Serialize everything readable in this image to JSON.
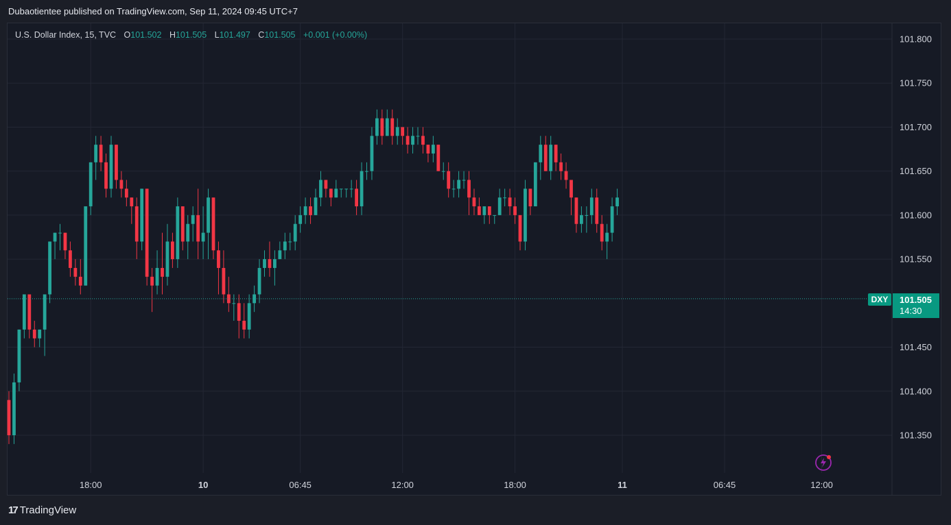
{
  "publisher_line": "Dubaotientee published on TradingView.com, Sep 11, 2024 09:45 UTC+7",
  "legend": {
    "symbol": "U.S. Dollar Index, 15, TVC",
    "o_label": "O",
    "o_value": "101.502",
    "h_label": "H",
    "h_value": "101.505",
    "l_label": "L",
    "l_value": "101.497",
    "c_label": "C",
    "c_value": "101.505",
    "change": "+0.001 (+0.00%)"
  },
  "last_price": {
    "ticker": "DXY",
    "price": "101.505",
    "countdown": "14:30"
  },
  "footer": {
    "logo_glyph": "17",
    "brand": "TradingView"
  },
  "icons": {
    "alert": "lightning-icon"
  },
  "colors": {
    "up": "#26a69a",
    "down": "#f23645",
    "background": "#161a25",
    "grid": "#232734"
  },
  "chart_data": {
    "type": "candlestick",
    "y_ticks": [
      "101.800",
      "101.750",
      "101.700",
      "101.650",
      "101.600",
      "101.550",
      "101.450",
      "101.400",
      "101.350"
    ],
    "ylim": [
      101.305,
      101.81
    ],
    "x_ticks": [
      {
        "label": "18:00",
        "bold": false,
        "index": 16
      },
      {
        "label": "10",
        "bold": true,
        "index": 38
      },
      {
        "label": "06:45",
        "bold": false,
        "index": 57
      },
      {
        "label": "12:00",
        "bold": false,
        "index": 77
      },
      {
        "label": "18:00",
        "bold": false,
        "index": 99
      },
      {
        "label": "11",
        "bold": true,
        "index": 120
      },
      {
        "label": "06:45",
        "bold": false,
        "index": 140
      },
      {
        "label": "12:00",
        "bold": false,
        "index": 159
      }
    ],
    "candles": [
      [
        101.39,
        101.4,
        101.34,
        101.35
      ],
      [
        101.35,
        101.42,
        101.34,
        101.41
      ],
      [
        101.41,
        101.47,
        101.4,
        101.47
      ],
      [
        101.47,
        101.51,
        101.46,
        101.51
      ],
      [
        101.51,
        101.51,
        101.46,
        101.47
      ],
      [
        101.47,
        101.48,
        101.45,
        101.46
      ],
      [
        101.46,
        101.47,
        101.45,
        101.47
      ],
      [
        101.47,
        101.51,
        101.44,
        101.51
      ],
      [
        101.51,
        101.57,
        101.5,
        101.57
      ],
      [
        101.57,
        101.58,
        101.55,
        101.58
      ],
      [
        101.58,
        101.59,
        101.56,
        101.58
      ],
      [
        101.58,
        101.58,
        101.55,
        101.56
      ],
      [
        101.56,
        101.57,
        101.53,
        101.54
      ],
      [
        101.54,
        101.55,
        101.52,
        101.53
      ],
      [
        101.53,
        101.55,
        101.51,
        101.52
      ],
      [
        101.52,
        101.61,
        101.52,
        101.61
      ],
      [
        101.61,
        101.66,
        101.6,
        101.66
      ],
      [
        101.66,
        101.69,
        101.64,
        101.68
      ],
      [
        101.68,
        101.69,
        101.65,
        101.66
      ],
      [
        101.66,
        101.67,
        101.62,
        101.63
      ],
      [
        101.63,
        101.69,
        101.62,
        101.68
      ],
      [
        101.68,
        101.68,
        101.63,
        101.64
      ],
      [
        101.64,
        101.65,
        101.62,
        101.63
      ],
      [
        101.63,
        101.64,
        101.61,
        101.62
      ],
      [
        101.62,
        101.62,
        101.59,
        101.61
      ],
      [
        101.61,
        101.62,
        101.55,
        101.57
      ],
      [
        101.57,
        101.63,
        101.56,
        101.63
      ],
      [
        101.63,
        101.63,
        101.52,
        101.53
      ],
      [
        101.53,
        101.54,
        101.49,
        101.52
      ],
      [
        101.52,
        101.56,
        101.51,
        101.54
      ],
      [
        101.54,
        101.58,
        101.51,
        101.53
      ],
      [
        101.53,
        101.59,
        101.52,
        101.57
      ],
      [
        101.57,
        101.58,
        101.54,
        101.55
      ],
      [
        101.55,
        101.62,
        101.54,
        101.61
      ],
      [
        101.61,
        101.61,
        101.56,
        101.57
      ],
      [
        101.57,
        101.6,
        101.55,
        101.59
      ],
      [
        101.59,
        101.61,
        101.57,
        101.6
      ],
      [
        101.6,
        101.63,
        101.55,
        101.57
      ],
      [
        101.57,
        101.61,
        101.55,
        101.58
      ],
      [
        101.58,
        101.63,
        101.55,
        101.62
      ],
      [
        101.62,
        101.62,
        101.55,
        101.56
      ],
      [
        101.56,
        101.57,
        101.51,
        101.54
      ],
      [
        101.54,
        101.56,
        101.5,
        101.51
      ],
      [
        101.51,
        101.53,
        101.49,
        101.5
      ],
      [
        101.5,
        101.51,
        101.48,
        101.5
      ],
      [
        101.5,
        101.51,
        101.46,
        101.48
      ],
      [
        101.48,
        101.5,
        101.46,
        101.47
      ],
      [
        101.47,
        101.51,
        101.46,
        101.5
      ],
      [
        101.5,
        101.52,
        101.49,
        101.51
      ],
      [
        101.51,
        101.55,
        101.5,
        101.54
      ],
      [
        101.54,
        101.56,
        101.53,
        101.55
      ],
      [
        101.55,
        101.57,
        101.53,
        101.54
      ],
      [
        101.54,
        101.56,
        101.52,
        101.55
      ],
      [
        101.55,
        101.57,
        101.55,
        101.56
      ],
      [
        101.56,
        101.58,
        101.55,
        101.57
      ],
      [
        101.57,
        101.58,
        101.56,
        101.57
      ],
      [
        101.57,
        101.6,
        101.56,
        101.59
      ],
      [
        101.59,
        101.61,
        101.58,
        101.6
      ],
      [
        101.6,
        101.62,
        101.59,
        101.61
      ],
      [
        101.61,
        101.62,
        101.59,
        101.6
      ],
      [
        101.6,
        101.63,
        101.6,
        101.62
      ],
      [
        101.62,
        101.65,
        101.61,
        101.64
      ],
      [
        101.64,
        101.64,
        101.62,
        101.63
      ],
      [
        101.63,
        101.63,
        101.61,
        101.62
      ],
      [
        101.62,
        101.64,
        101.62,
        101.63
      ],
      [
        101.63,
        101.63,
        101.62,
        101.63
      ],
      [
        101.63,
        101.63,
        101.62,
        101.63
      ],
      [
        101.63,
        101.64,
        101.62,
        101.63
      ],
      [
        101.63,
        101.64,
        101.6,
        101.61
      ],
      [
        101.61,
        101.66,
        101.6,
        101.65
      ],
      [
        101.65,
        101.66,
        101.64,
        101.65
      ],
      [
        101.65,
        101.7,
        101.64,
        101.69
      ],
      [
        101.69,
        101.72,
        101.68,
        101.71
      ],
      [
        101.71,
        101.72,
        101.68,
        101.69
      ],
      [
        101.69,
        101.72,
        101.69,
        101.71
      ],
      [
        101.71,
        101.72,
        101.68,
        101.69
      ],
      [
        101.69,
        101.71,
        101.68,
        101.7
      ],
      [
        101.7,
        101.7,
        101.68,
        101.69
      ],
      [
        101.69,
        101.7,
        101.67,
        101.68
      ],
      [
        101.68,
        101.7,
        101.67,
        101.69
      ],
      [
        101.69,
        101.7,
        101.68,
        101.69
      ],
      [
        101.69,
        101.7,
        101.67,
        101.68
      ],
      [
        101.68,
        101.68,
        101.66,
        101.67
      ],
      [
        101.67,
        101.69,
        101.66,
        101.68
      ],
      [
        101.68,
        101.68,
        101.65,
        101.65
      ],
      [
        101.65,
        101.66,
        101.64,
        101.65
      ],
      [
        101.65,
        101.66,
        101.62,
        101.63
      ],
      [
        101.63,
        101.64,
        101.62,
        101.63
      ],
      [
        101.63,
        101.65,
        101.62,
        101.64
      ],
      [
        101.64,
        101.65,
        101.63,
        101.64
      ],
      [
        101.64,
        101.65,
        101.6,
        101.62
      ],
      [
        101.62,
        101.63,
        101.6,
        101.61
      ],
      [
        101.61,
        101.62,
        101.6,
        101.6
      ],
      [
        101.6,
        101.61,
        101.59,
        101.61
      ],
      [
        101.61,
        101.61,
        101.59,
        101.6
      ],
      [
        101.6,
        101.6,
        101.59,
        101.6
      ],
      [
        101.6,
        101.63,
        101.6,
        101.62
      ],
      [
        101.62,
        101.63,
        101.61,
        101.62
      ],
      [
        101.62,
        101.63,
        101.6,
        101.61
      ],
      [
        101.61,
        101.62,
        101.59,
        101.6
      ],
      [
        101.6,
        101.6,
        101.56,
        101.57
      ],
      [
        101.57,
        101.64,
        101.56,
        101.63
      ],
      [
        101.63,
        101.63,
        101.6,
        101.61
      ],
      [
        101.61,
        101.66,
        101.61,
        101.66
      ],
      [
        101.66,
        101.69,
        101.64,
        101.68
      ],
      [
        101.68,
        101.69,
        101.65,
        101.65
      ],
      [
        101.65,
        101.69,
        101.64,
        101.68
      ],
      [
        101.68,
        101.68,
        101.65,
        101.66
      ],
      [
        101.66,
        101.67,
        101.64,
        101.65
      ],
      [
        101.65,
        101.66,
        101.63,
        101.64
      ],
      [
        101.64,
        101.64,
        101.6,
        101.62
      ],
      [
        101.62,
        101.62,
        101.58,
        101.59
      ],
      [
        101.59,
        101.61,
        101.58,
        101.6
      ],
      [
        101.6,
        101.61,
        101.58,
        101.6
      ],
      [
        101.6,
        101.63,
        101.59,
        101.62
      ],
      [
        101.62,
        101.63,
        101.58,
        101.59
      ],
      [
        101.59,
        101.6,
        101.56,
        101.57
      ],
      [
        101.57,
        101.59,
        101.55,
        101.58
      ],
      [
        101.58,
        101.62,
        101.57,
        101.61
      ],
      [
        101.61,
        101.63,
        101.6,
        101.62
      ]
    ]
  }
}
